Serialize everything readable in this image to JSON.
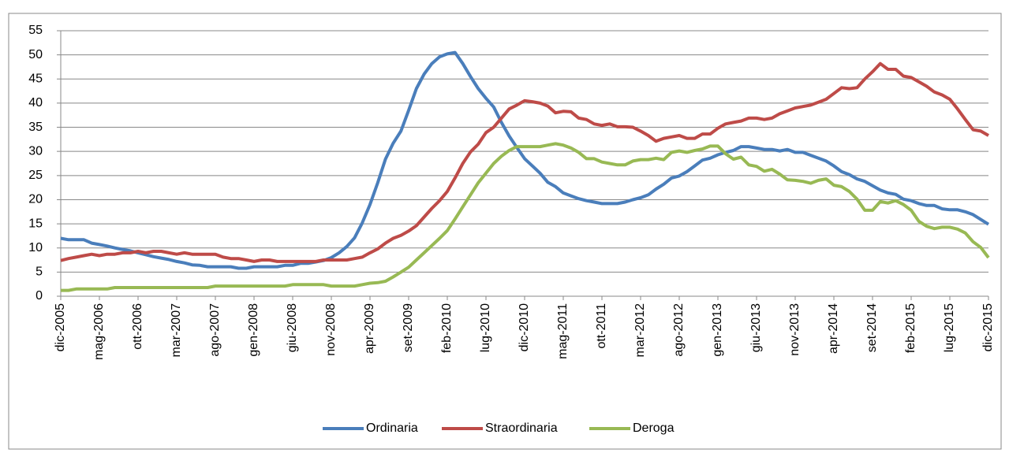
{
  "chart_data": {
    "type": "line",
    "categories": [
      "dic-2005",
      null,
      null,
      null,
      null,
      "mag-2006",
      null,
      null,
      null,
      null,
      "ott-2006",
      null,
      null,
      null,
      null,
      "mar-2007",
      null,
      null,
      null,
      null,
      "ago-2007",
      null,
      null,
      null,
      null,
      "gen-2008",
      null,
      null,
      null,
      null,
      "giu-2008",
      null,
      null,
      null,
      null,
      "nov-2008",
      null,
      null,
      null,
      null,
      "apr-2009",
      null,
      null,
      null,
      null,
      "set-2009",
      null,
      null,
      null,
      null,
      "feb-2010",
      null,
      null,
      null,
      null,
      "lug-2010",
      null,
      null,
      null,
      null,
      "dic-2010",
      null,
      null,
      null,
      null,
      "mag-2011",
      null,
      null,
      null,
      null,
      "ott-2011",
      null,
      null,
      null,
      null,
      "mar-2012",
      null,
      null,
      null,
      null,
      "ago-2012",
      null,
      null,
      null,
      null,
      "gen-2013",
      null,
      null,
      null,
      null,
      "giu-2013",
      null,
      null,
      null,
      null,
      "nov-2013",
      null,
      null,
      null,
      null,
      "apr-2014",
      null,
      null,
      null,
      null,
      "set-2014",
      null,
      null,
      null,
      null,
      "feb-2015",
      null,
      null,
      null,
      null,
      "lug-2015",
      null,
      null,
      null,
      null,
      "dic-2015"
    ],
    "series": [
      {
        "name": "Ordinaria",
        "color": "#4a7ebb",
        "values": [
          12,
          11.7,
          11.7,
          11.7,
          11,
          10.7,
          10.4,
          10,
          9.7,
          9.4,
          9,
          8.6,
          8.2,
          7.9,
          7.6,
          7.2,
          6.9,
          6.5,
          6.4,
          6.1,
          6.1,
          6.1,
          6.1,
          5.8,
          5.8,
          6.1,
          6.1,
          6.1,
          6.1,
          6.4,
          6.4,
          6.8,
          6.8,
          7.1,
          7.4,
          8,
          9,
          10.3,
          12.1,
          15.2,
          19,
          23.5,
          28.4,
          31.7,
          34.2,
          38.5,
          43,
          46,
          48.2,
          49.6,
          50.2,
          50.5,
          48.2,
          45.5,
          43,
          41,
          39.2,
          36,
          33.2,
          30.8,
          28.5,
          27,
          25.5,
          23.6,
          22.7,
          21.4,
          20.8,
          20.2,
          19.8,
          19.5,
          19.2,
          19.2,
          19.2,
          19.5,
          20,
          20.4,
          21,
          22.2,
          23.2,
          24.5,
          24.9,
          25.8,
          27,
          28.2,
          28.6,
          29.3,
          29.8,
          30.2,
          31,
          31,
          30.7,
          30.4,
          30.4,
          30.1,
          30.4,
          29.8,
          29.8,
          29.2,
          28.6,
          28,
          27,
          25.8,
          25.2,
          24.3,
          23.8,
          22.9,
          22,
          21.4,
          21.1,
          20.1,
          19.8,
          19.2,
          18.8,
          18.8,
          18.1,
          17.9,
          17.9,
          17.5,
          16.9,
          15.9,
          14.9
        ]
      },
      {
        "name": "Straordinaria",
        "color": "#be4b48",
        "values": [
          7.4,
          7.8,
          8.1,
          8.4,
          8.7,
          8.4,
          8.7,
          8.7,
          9,
          9,
          9.3,
          9,
          9.3,
          9.3,
          9,
          8.7,
          9,
          8.7,
          8.7,
          8.7,
          8.7,
          8.1,
          7.8,
          7.8,
          7.5,
          7.2,
          7.5,
          7.5,
          7.2,
          7.2,
          7.2,
          7.2,
          7.2,
          7.2,
          7.5,
          7.5,
          7.5,
          7.5,
          7.8,
          8.1,
          9,
          9.8,
          11,
          12,
          12.6,
          13.5,
          14.6,
          16.4,
          18.2,
          19.8,
          21.7,
          24.5,
          27.5,
          29.9,
          31.5,
          33.9,
          35,
          36.9,
          38.8,
          39.6,
          40.5,
          40.3,
          40,
          39.4,
          38,
          38.3,
          38.2,
          36.9,
          36.6,
          35.7,
          35.4,
          35.7,
          35.1,
          35.1,
          35,
          34.2,
          33.3,
          32.1,
          32.7,
          33,
          33.3,
          32.7,
          32.7,
          33.6,
          33.6,
          34.8,
          35.7,
          36,
          36.3,
          36.9,
          36.9,
          36.6,
          36.9,
          37.8,
          38.4,
          39,
          39.3,
          39.6,
          40.2,
          40.8,
          42,
          43.2,
          43,
          43.2,
          45,
          46.5,
          48.2,
          47,
          47,
          45.6,
          45.3,
          44.4,
          43.5,
          42.3,
          41.7,
          40.8,
          38.8,
          36.6,
          34.5,
          34.2,
          33.3
        ]
      },
      {
        "name": "Deroga",
        "color": "#98b954",
        "values": [
          1.2,
          1.2,
          1.5,
          1.5,
          1.5,
          1.5,
          1.5,
          1.8,
          1.8,
          1.8,
          1.8,
          1.8,
          1.8,
          1.8,
          1.8,
          1.8,
          1.8,
          1.8,
          1.8,
          1.8,
          2.1,
          2.1,
          2.1,
          2.1,
          2.1,
          2.1,
          2.1,
          2.1,
          2.1,
          2.1,
          2.4,
          2.4,
          2.4,
          2.4,
          2.4,
          2.1,
          2.1,
          2.1,
          2.1,
          2.4,
          2.7,
          2.8,
          3.1,
          4,
          5,
          6,
          7.5,
          9,
          10.5,
          12,
          13.6,
          16,
          18.5,
          21,
          23.5,
          25.5,
          27.5,
          29,
          30.2,
          31,
          31,
          31,
          31,
          31.3,
          31.6,
          31.3,
          30.7,
          29.8,
          28.5,
          28.5,
          27.8,
          27.5,
          27.2,
          27.2,
          28,
          28.3,
          28.3,
          28.6,
          28.3,
          29.8,
          30.1,
          29.8,
          30.2,
          30.5,
          31.1,
          31.1,
          29.5,
          28.4,
          28.8,
          27.2,
          26.9,
          25.9,
          26.3,
          25.3,
          24.1,
          24,
          23.8,
          23.4,
          24,
          24.3,
          23,
          22.7,
          21.7,
          20.1,
          17.8,
          17.8,
          19.6,
          19.3,
          19.8,
          19,
          17.8,
          15.5,
          14.5,
          14,
          14.3,
          14.3,
          13.9,
          13.1,
          11.3,
          10.1,
          8
        ]
      }
    ],
    "ylim": [
      0,
      55
    ],
    "yticks": [
      0,
      5,
      10,
      15,
      20,
      25,
      30,
      35,
      40,
      45,
      50,
      55
    ],
    "grid": true,
    "legend": "bottom"
  }
}
